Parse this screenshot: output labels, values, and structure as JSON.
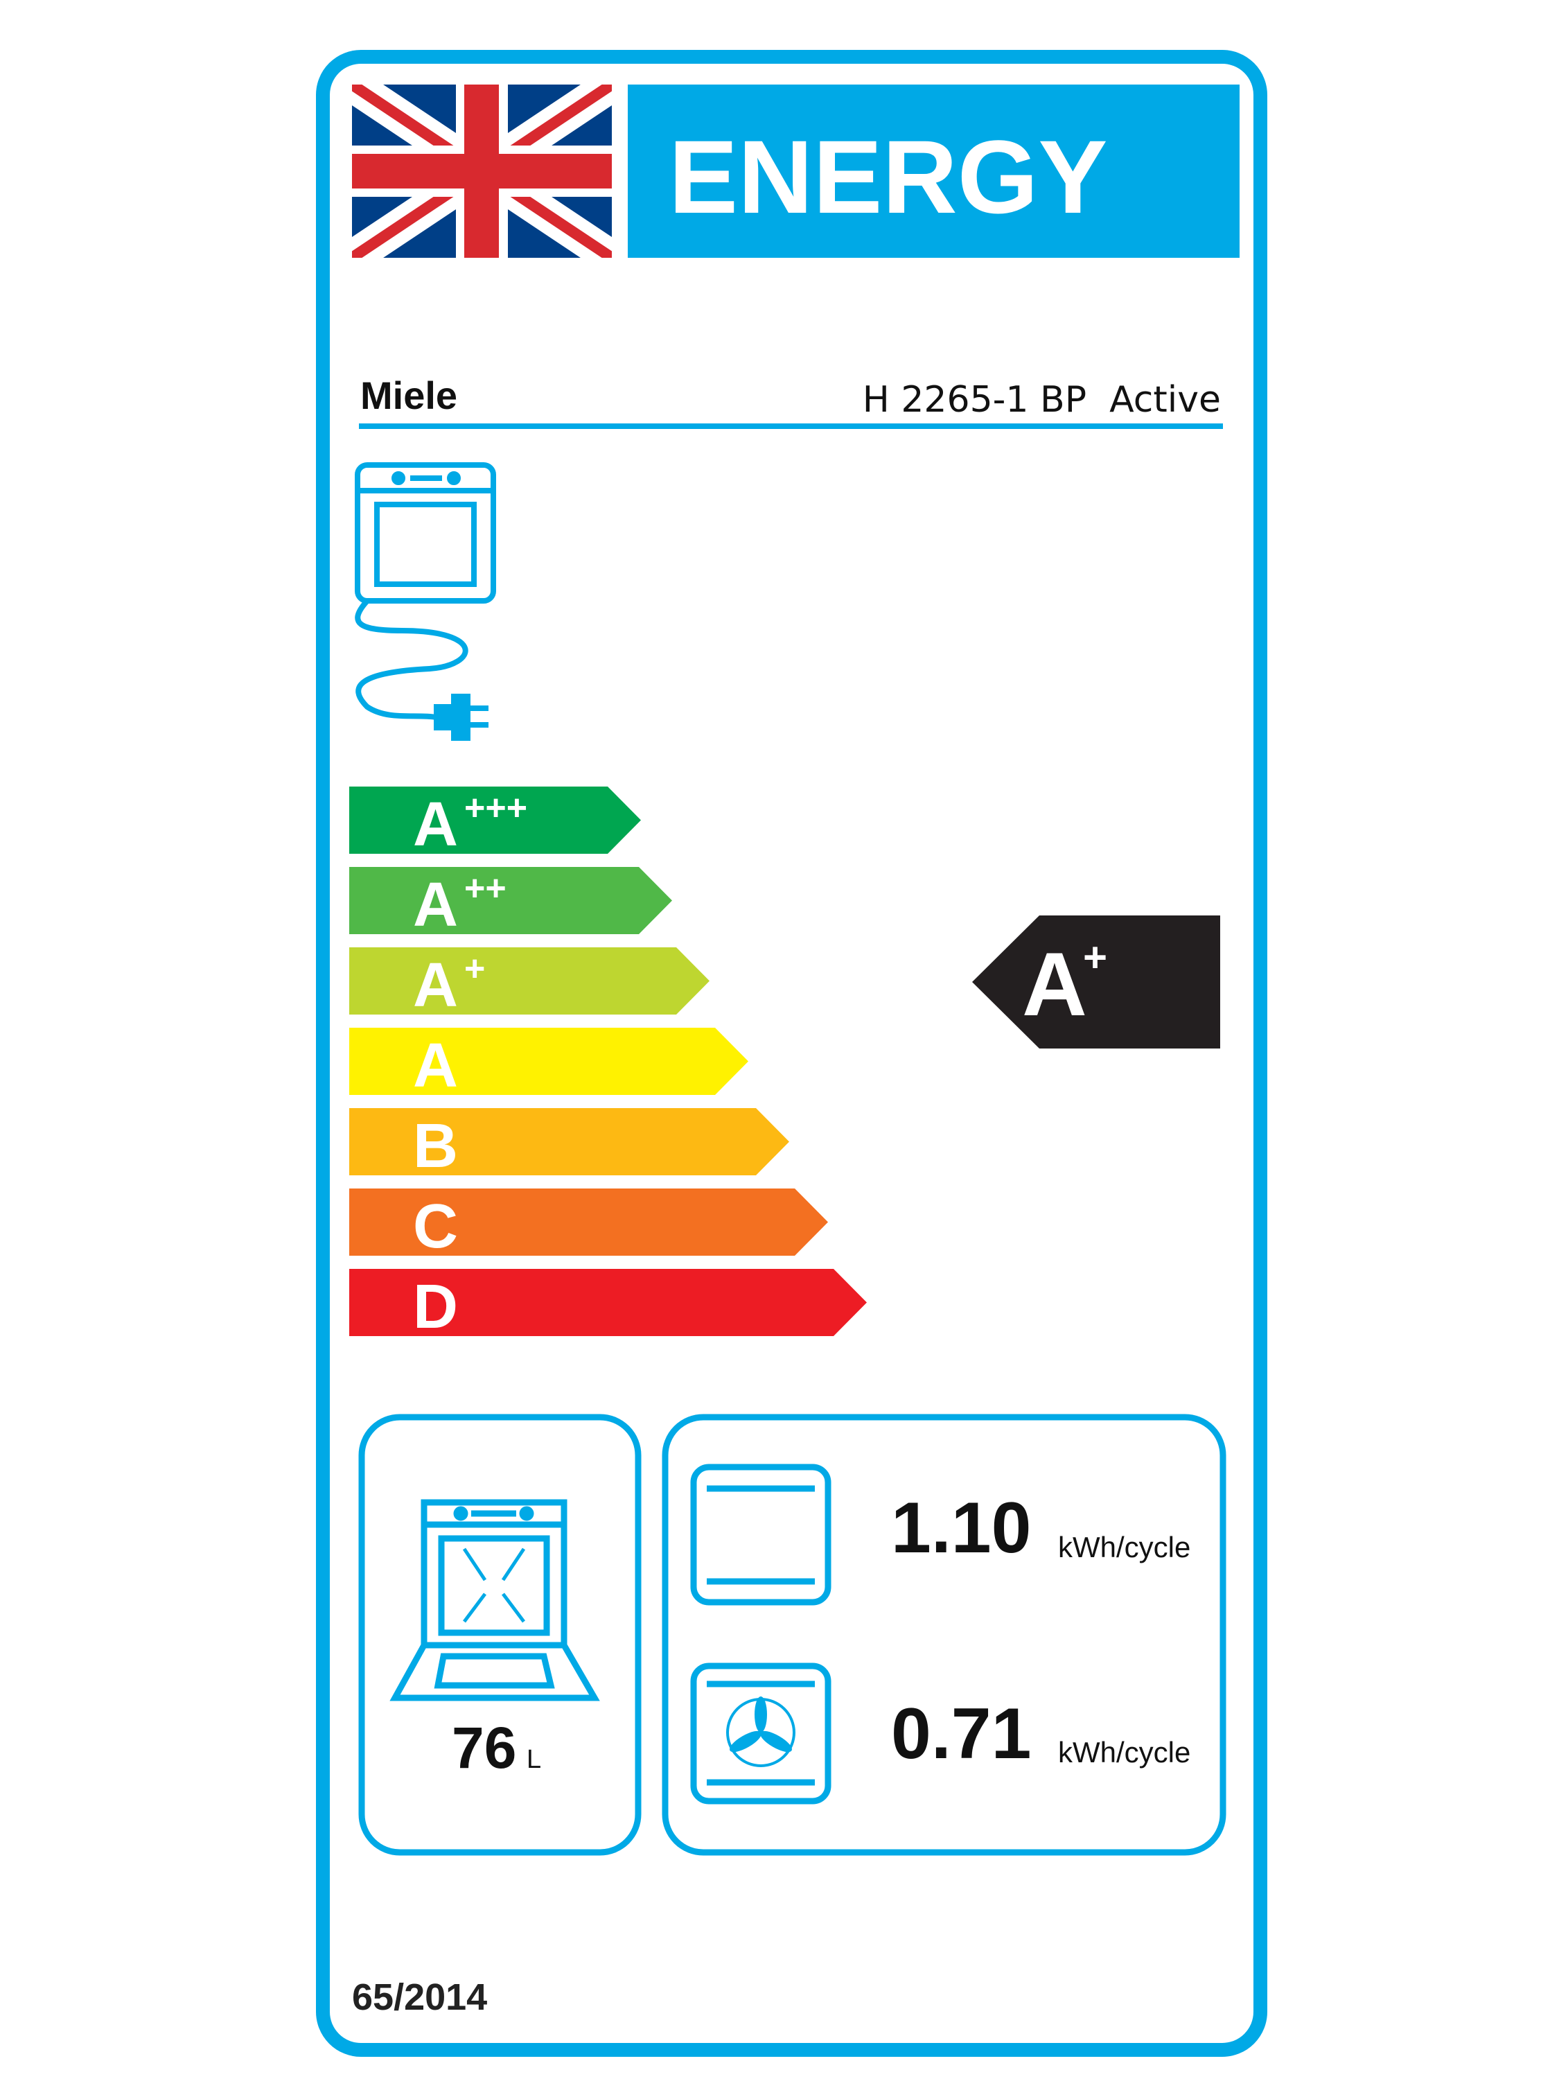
{
  "header": {
    "title": "ENERGY",
    "flag": "uk-flag-icon"
  },
  "supplier": "Miele",
  "model": "H 2265-1 BP  Active",
  "classes": [
    {
      "letter": "A",
      "plus": "+++",
      "color": "#00a650"
    },
    {
      "letter": "A",
      "plus": "++",
      "color": "#50b848"
    },
    {
      "letter": "A",
      "plus": "+",
      "color": "#bed630"
    },
    {
      "letter": "A",
      "plus": "",
      "color": "#fff200"
    },
    {
      "letter": "B",
      "plus": "",
      "color": "#fdb913"
    },
    {
      "letter": "C",
      "plus": "",
      "color": "#f37021"
    },
    {
      "letter": "D",
      "plus": "",
      "color": "#ed1c24"
    }
  ],
  "rating": {
    "letter": "A",
    "plus": "+"
  },
  "volume": {
    "value": "76",
    "unit": "L"
  },
  "conventional": {
    "value": "1.10",
    "unit": "kWh/cycle"
  },
  "fan_forced": {
    "value": "0.71",
    "unit": "kWh/cycle"
  },
  "regulation": "65/2014",
  "colors": {
    "accent": "#00a9e6",
    "flag_blue": "#003f87",
    "flag_red": "#d8292f",
    "rating_bg": "#231f20"
  }
}
